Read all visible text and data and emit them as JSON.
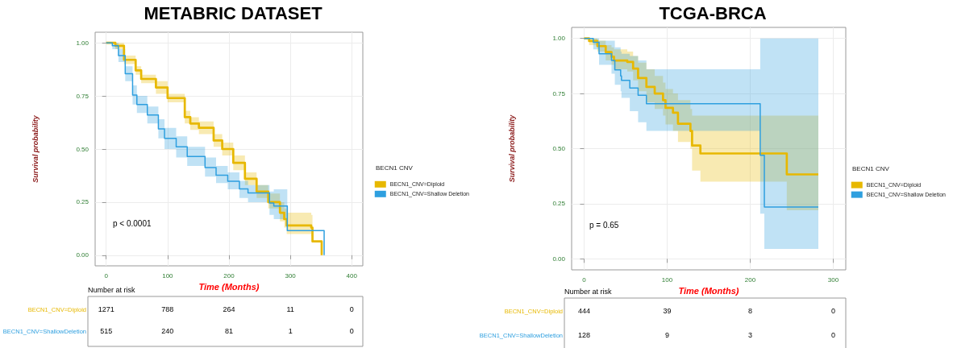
{
  "chart_data": [
    {
      "type": "step",
      "title": "METABRIC DATASET",
      "xlabel": "Time (Months)",
      "ylabel": "Survival probability",
      "legend_title": "BECN1 CNV",
      "legend": "right",
      "grid": true,
      "xlim": [
        -18,
        418
      ],
      "xticks": [
        0,
        100,
        200,
        300,
        400
      ],
      "ylim": [
        -0.05,
        1.05
      ],
      "yticks": [
        {
          "value": 0,
          "label": "0.00"
        },
        {
          "value": 0.25,
          "label": "0.25"
        },
        {
          "value": 0.5,
          "label": "0.50"
        },
        {
          "value": 0.75,
          "label": "0.75"
        },
        {
          "value": 1,
          "label": "1.00"
        }
      ],
      "series": [
        {
          "name": "BECN1_CNV=Diploid",
          "color": "#e7b800",
          "x": [
            0,
            15,
            29,
            48,
            57,
            81,
            100,
            128,
            137,
            151,
            175,
            189,
            207,
            226,
            245,
            264,
            283,
            290,
            294,
            334,
            336,
            351
          ],
          "values": [
            1,
            0.986,
            0.92,
            0.87,
            0.83,
            0.79,
            0.74,
            0.65,
            0.62,
            0.6,
            0.54,
            0.5,
            0.435,
            0.36,
            0.3,
            0.25,
            0.2,
            0.17,
            0.14,
            0.13,
            0.065,
            0
          ],
          "lower": [
            1,
            0.97,
            0.9,
            0.85,
            0.81,
            0.76,
            0.72,
            0.62,
            0.59,
            0.57,
            0.51,
            0.47,
            0.4,
            0.33,
            0.27,
            0.22,
            0.16,
            0.13,
            0.1,
            0.09,
            0.09,
            null
          ],
          "upper": [
            1,
            1,
            0.94,
            0.89,
            0.85,
            0.82,
            0.76,
            0.68,
            0.65,
            0.63,
            0.57,
            0.53,
            0.47,
            0.39,
            0.33,
            0.29,
            0.25,
            0.22,
            0.2,
            0.19,
            0.19,
            null
          ]
        },
        {
          "name": "BECN1_CNV=Shallow Deletion",
          "color": "#2e9fdf",
          "x": [
            0,
            10,
            20,
            31,
            43,
            50,
            67,
            85,
            95,
            114,
            132,
            161,
            179,
            198,
            217,
            231,
            266,
            273,
            295,
            355
          ],
          "values": [
            1,
            0.986,
            0.94,
            0.855,
            0.754,
            0.71,
            0.66,
            0.595,
            0.55,
            0.51,
            0.465,
            0.413,
            0.377,
            0.348,
            0.312,
            0.293,
            0.246,
            0.232,
            0.116,
            0
          ],
          "lower": [
            1,
            0.97,
            0.91,
            0.82,
            0.71,
            0.67,
            0.62,
            0.55,
            0.5,
            0.46,
            0.42,
            0.37,
            0.34,
            0.31,
            0.27,
            0.25,
            0.19,
            0.17,
            0.17,
            null
          ],
          "upper": [
            1,
            1,
            0.97,
            0.89,
            0.8,
            0.75,
            0.7,
            0.64,
            0.6,
            0.56,
            0.51,
            0.46,
            0.42,
            0.39,
            0.35,
            0.33,
            0.3,
            0.31,
            0.31,
            null
          ]
        }
      ],
      "annotations": [
        "p < 0.0001",
        "Number at risk",
        "BECN1_CNV=Diploid",
        "1271",
        "788",
        "264",
        "11",
        "0",
        "BECN1_CNV=ShallowDeletion",
        "515",
        "240",
        "81",
        "1",
        "0"
      ]
    },
    {
      "type": "step",
      "title": "TCGA-BRCA",
      "xlabel": "Time (Months)",
      "ylabel": "Survival probability",
      "legend_title": "BECN1 CNV",
      "legend": "right",
      "grid": true,
      "xlim": [
        -15,
        315
      ],
      "xticks": [
        0,
        100,
        200,
        300
      ],
      "ylim": [
        -0.05,
        1.05
      ],
      "yticks": [
        {
          "value": 0,
          "label": "0.00"
        },
        {
          "value": 0.25,
          "label": "0.25"
        },
        {
          "value": 0.5,
          "label": "0.50"
        },
        {
          "value": 0.75,
          "label": "0.75"
        },
        {
          "value": 1,
          "label": "1.00"
        }
      ],
      "series": [
        {
          "name": "BECN1_CNV=Diploid",
          "color": "#e7b800",
          "x": [
            0,
            6,
            16,
            26,
            33,
            36,
            52,
            59,
            65,
            75,
            85,
            95,
            98,
            107,
            113,
            128,
            130,
            140,
            244,
            282
          ],
          "values": [
            1,
            0.988,
            0.965,
            0.938,
            0.917,
            0.9,
            0.893,
            0.863,
            0.82,
            0.78,
            0.75,
            0.72,
            0.685,
            0.663,
            0.613,
            0.58,
            0.514,
            0.478,
            0.383,
            0.383
          ],
          "lower": [
            1,
            0.97,
            0.94,
            0.9,
            0.88,
            0.86,
            0.85,
            0.81,
            0.76,
            0.71,
            0.68,
            0.65,
            0.61,
            0.58,
            0.53,
            0.5,
            0.4,
            0.35,
            0.22,
            0.22
          ],
          "upper": [
            1,
            1,
            0.99,
            0.97,
            0.96,
            0.95,
            0.94,
            0.92,
            0.89,
            0.86,
            0.83,
            0.8,
            0.77,
            0.75,
            0.72,
            0.68,
            0.65,
            0.65,
            0.65,
            0.65
          ]
        },
        {
          "name": "BECN1_CNV=Shallow Deletion",
          "color": "#2e9fdf",
          "x": [
            0,
            11,
            18,
            33,
            37,
            44,
            45,
            55,
            65,
            75,
            212,
            217,
            282
          ],
          "values": [
            1,
            0.982,
            0.93,
            0.9,
            0.857,
            0.83,
            0.81,
            0.775,
            0.742,
            0.704,
            0.47,
            0.235,
            0.235
          ],
          "lower": [
            1,
            0.95,
            0.88,
            0.84,
            0.79,
            0.76,
            0.73,
            0.67,
            0.62,
            0.58,
            0.205,
            0.045,
            0.045
          ],
          "upper": [
            1,
            1,
            0.99,
            0.99,
            0.96,
            0.94,
            0.93,
            0.92,
            0.9,
            0.86,
            1,
            1,
            1
          ]
        }
      ],
      "annotations": [
        "p = 0.65",
        "Number at risk",
        "BECN1_CNV=Diploid",
        "444",
        "39",
        "8",
        "0",
        "BECN1_CNV=ShallowDeletion",
        "128",
        "9",
        "3",
        "0"
      ]
    }
  ]
}
